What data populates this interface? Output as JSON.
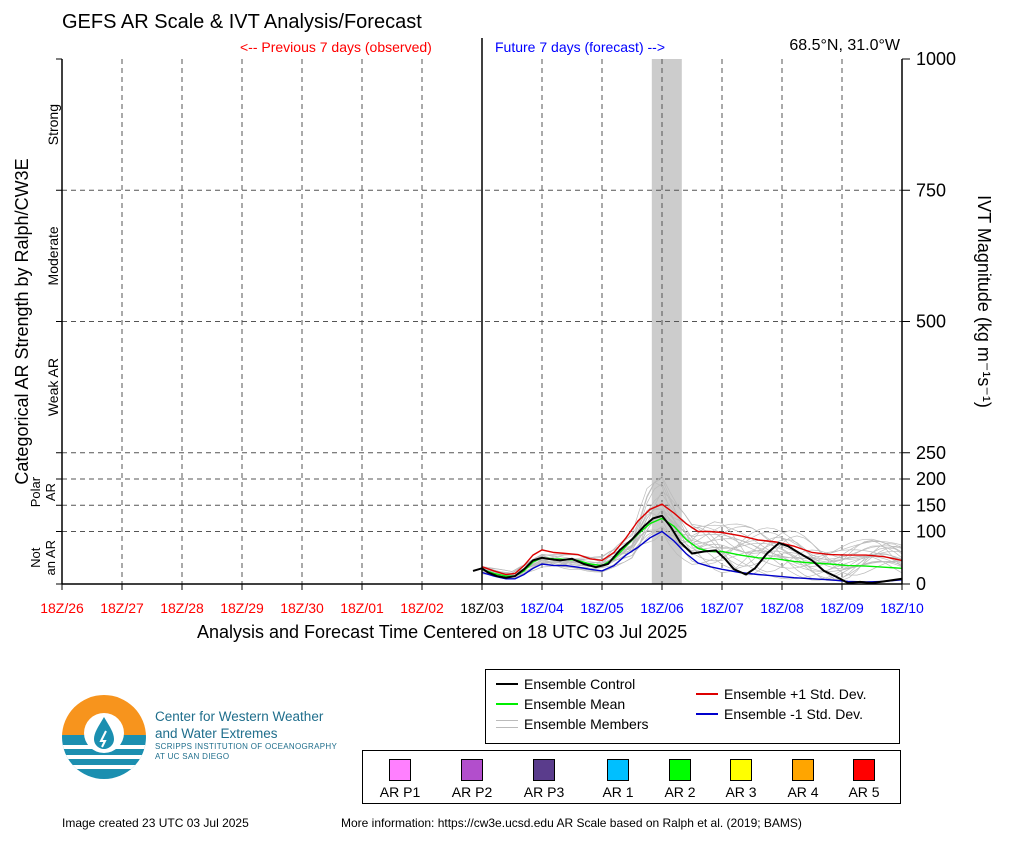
{
  "title": "GEFS AR Scale & IVT Analysis/Forecast",
  "previous_label": "<-- Previous 7 days (observed)",
  "future_label": "Future 7 days (forecast) -->",
  "location": "68.5°N, 31.0°W",
  "colors": {
    "observed": "#ff0000",
    "forecast": "#0000ff",
    "control": "#000000",
    "mean": "#00ee00",
    "members": "#bbbbbb",
    "plus_std": "#dd0000",
    "minus_std": "#0000cc",
    "highlight": "#cccccc"
  },
  "chart_data": {
    "type": "line",
    "xlabel": "Analysis and Forecast Time Centered on 18 UTC 03 Jul 2025",
    "ylabel_left": "Categorical AR Strength by Ralph/CW3E",
    "ylabel_right": "IVT Magnitude (kg m⁻¹s⁻¹)",
    "x_ticks": [
      "18Z/26",
      "18Z/27",
      "18Z/28",
      "18Z/29",
      "18Z/30",
      "18Z/01",
      "18Z/02",
      "18Z/03",
      "18Z/04",
      "18Z/05",
      "18Z/06",
      "18Z/07",
      "18Z/08",
      "18Z/09",
      "18Z/10"
    ],
    "x_tick_groups": [
      "observed",
      "observed",
      "observed",
      "observed",
      "observed",
      "observed",
      "observed",
      "now",
      "forecast",
      "forecast",
      "forecast",
      "forecast",
      "forecast",
      "forecast",
      "forecast"
    ],
    "xlim_days": [
      -7,
      7
    ],
    "ylim": [
      0,
      1000
    ],
    "y_ticks": [
      0,
      100,
      150,
      200,
      250,
      500,
      750,
      1000
    ],
    "category_labels": [
      {
        "name": "Not an AR",
        "range": [
          0,
          100
        ]
      },
      {
        "name": "Polar AR",
        "range": [
          100,
          250
        ]
      },
      {
        "name": "Weak AR",
        "range": [
          250,
          500
        ]
      },
      {
        "name": "Moderate",
        "range": [
          500,
          750
        ]
      },
      {
        "name": "Strong",
        "range": [
          750,
          1000
        ]
      }
    ],
    "highlight_days": [
      2.83,
      3.33
    ],
    "series": [
      {
        "name": "Ensemble Control",
        "x": [
          -0.15,
          0,
          0.1,
          0.25,
          0.4,
          0.55,
          0.7,
          0.85,
          1.0,
          1.15,
          1.3,
          1.5,
          1.7,
          1.9,
          2.1,
          2.3,
          2.5,
          2.7,
          2.85,
          3.0,
          3.15,
          3.3,
          3.5,
          3.7,
          3.9,
          4.05,
          4.2,
          4.4,
          4.55,
          4.75,
          4.95,
          5.1,
          5.3,
          5.5,
          5.7,
          5.9,
          6.1,
          6.3,
          6.5,
          6.7,
          7.0
        ],
        "y": [
          25,
          30,
          22,
          15,
          12,
          15,
          28,
          45,
          50,
          47,
          45,
          48,
          38,
          32,
          38,
          65,
          85,
          110,
          125,
          130,
          108,
          80,
          58,
          62,
          64,
          48,
          28,
          18,
          30,
          58,
          78,
          72,
          58,
          45,
          25,
          14,
          2,
          4,
          2,
          5,
          10
        ]
      },
      {
        "name": "Ensemble Mean",
        "x": [
          0,
          0.2,
          0.4,
          0.55,
          0.7,
          0.85,
          1.0,
          1.2,
          1.4,
          1.6,
          1.8,
          2.0,
          2.2,
          2.4,
          2.6,
          2.8,
          3.0,
          3.2,
          3.4,
          3.6,
          3.8,
          4.0,
          4.3,
          4.6,
          4.9,
          5.2,
          5.5,
          5.8,
          6.1,
          6.4,
          6.7,
          7.0
        ],
        "y": [
          28,
          20,
          15,
          15,
          25,
          42,
          50,
          48,
          47,
          45,
          38,
          35,
          48,
          72,
          95,
          115,
          125,
          110,
          85,
          68,
          62,
          62,
          55,
          50,
          48,
          43,
          40,
          38,
          35,
          34,
          32,
          30
        ]
      },
      {
        "name": "Ensemble +1 Std. Dev.",
        "x": [
          0,
          0.2,
          0.4,
          0.55,
          0.7,
          0.85,
          1.0,
          1.2,
          1.4,
          1.6,
          1.8,
          2.0,
          2.2,
          2.4,
          2.6,
          2.8,
          3.0,
          3.2,
          3.4,
          3.6,
          3.8,
          4.0,
          4.3,
          4.6,
          4.9,
          5.2,
          5.5,
          5.8,
          6.1,
          6.4,
          6.7,
          7.0
        ],
        "y": [
          33,
          25,
          18,
          20,
          35,
          55,
          65,
          60,
          58,
          56,
          48,
          45,
          60,
          88,
          120,
          142,
          152,
          135,
          115,
          100,
          100,
          98,
          92,
          84,
          80,
          72,
          60,
          56,
          55,
          55,
          52,
          45
        ]
      },
      {
        "name": "Ensemble -1 Std. Dev.",
        "x": [
          0,
          0.2,
          0.4,
          0.55,
          0.7,
          0.85,
          1.0,
          1.2,
          1.4,
          1.6,
          1.8,
          2.0,
          2.2,
          2.4,
          2.6,
          2.8,
          3.0,
          3.2,
          3.4,
          3.6,
          3.8,
          4.0,
          4.3,
          4.6,
          4.9,
          5.2,
          5.5,
          5.8,
          6.1,
          6.4,
          6.7,
          7.0
        ],
        "y": [
          22,
          15,
          10,
          10,
          18,
          30,
          38,
          35,
          35,
          32,
          28,
          25,
          35,
          55,
          70,
          88,
          100,
          82,
          58,
          40,
          33,
          28,
          22,
          18,
          15,
          12,
          10,
          8,
          5,
          4,
          5,
          8
        ]
      }
    ],
    "members_envelope": {
      "name": "Ensemble Members",
      "x": [
        0,
        0.5,
        1.0,
        1.5,
        2.0,
        2.5,
        2.8,
        3.0,
        3.2,
        3.5,
        4.0,
        4.5,
        5.0,
        5.5,
        6.0,
        6.5,
        7.0
      ],
      "y_max": [
        35,
        25,
        62,
        58,
        55,
        100,
        210,
        218,
        165,
        120,
        125,
        120,
        110,
        100,
        95,
        90,
        80
      ],
      "y_min": [
        18,
        8,
        30,
        25,
        20,
        40,
        70,
        82,
        55,
        30,
        15,
        10,
        5,
        2,
        0,
        0,
        0
      ]
    }
  },
  "legend": {
    "items": [
      {
        "label": "Ensemble Control"
      },
      {
        "label": "Ensemble Mean"
      },
      {
        "label": "Ensemble Members"
      },
      {
        "label": "Ensemble +1 Std. Dev."
      },
      {
        "label": "Ensemble -1 Std. Dev."
      }
    ]
  },
  "ar_scale": [
    {
      "label": "AR P1",
      "color": "#ff80ff"
    },
    {
      "label": "AR P2",
      "color": "#b24ecc"
    },
    {
      "label": "AR P3",
      "color": "#5a3c8c"
    },
    {
      "label": "AR 1",
      "color": "#00bfff"
    },
    {
      "label": "AR 2",
      "color": "#00ff00"
    },
    {
      "label": "AR 3",
      "color": "#ffff00"
    },
    {
      "label": "AR 4",
      "color": "#ffa500"
    },
    {
      "label": "AR 5",
      "color": "#ff0000"
    }
  ],
  "org": {
    "name_line1": "Center for Western Weather",
    "name_line2": "and Water Extremes",
    "sub_line1": "SCRIPPS INSTITUTION OF OCEANOGRAPHY",
    "sub_line2": "AT UC SAN DIEGO"
  },
  "footer": {
    "created": "Image created 23 UTC 03 Jul 2025",
    "more_info": "More information: https://cw3e.ucsd.edu AR Scale based on Ralph et al. (2019; BAMS)"
  }
}
